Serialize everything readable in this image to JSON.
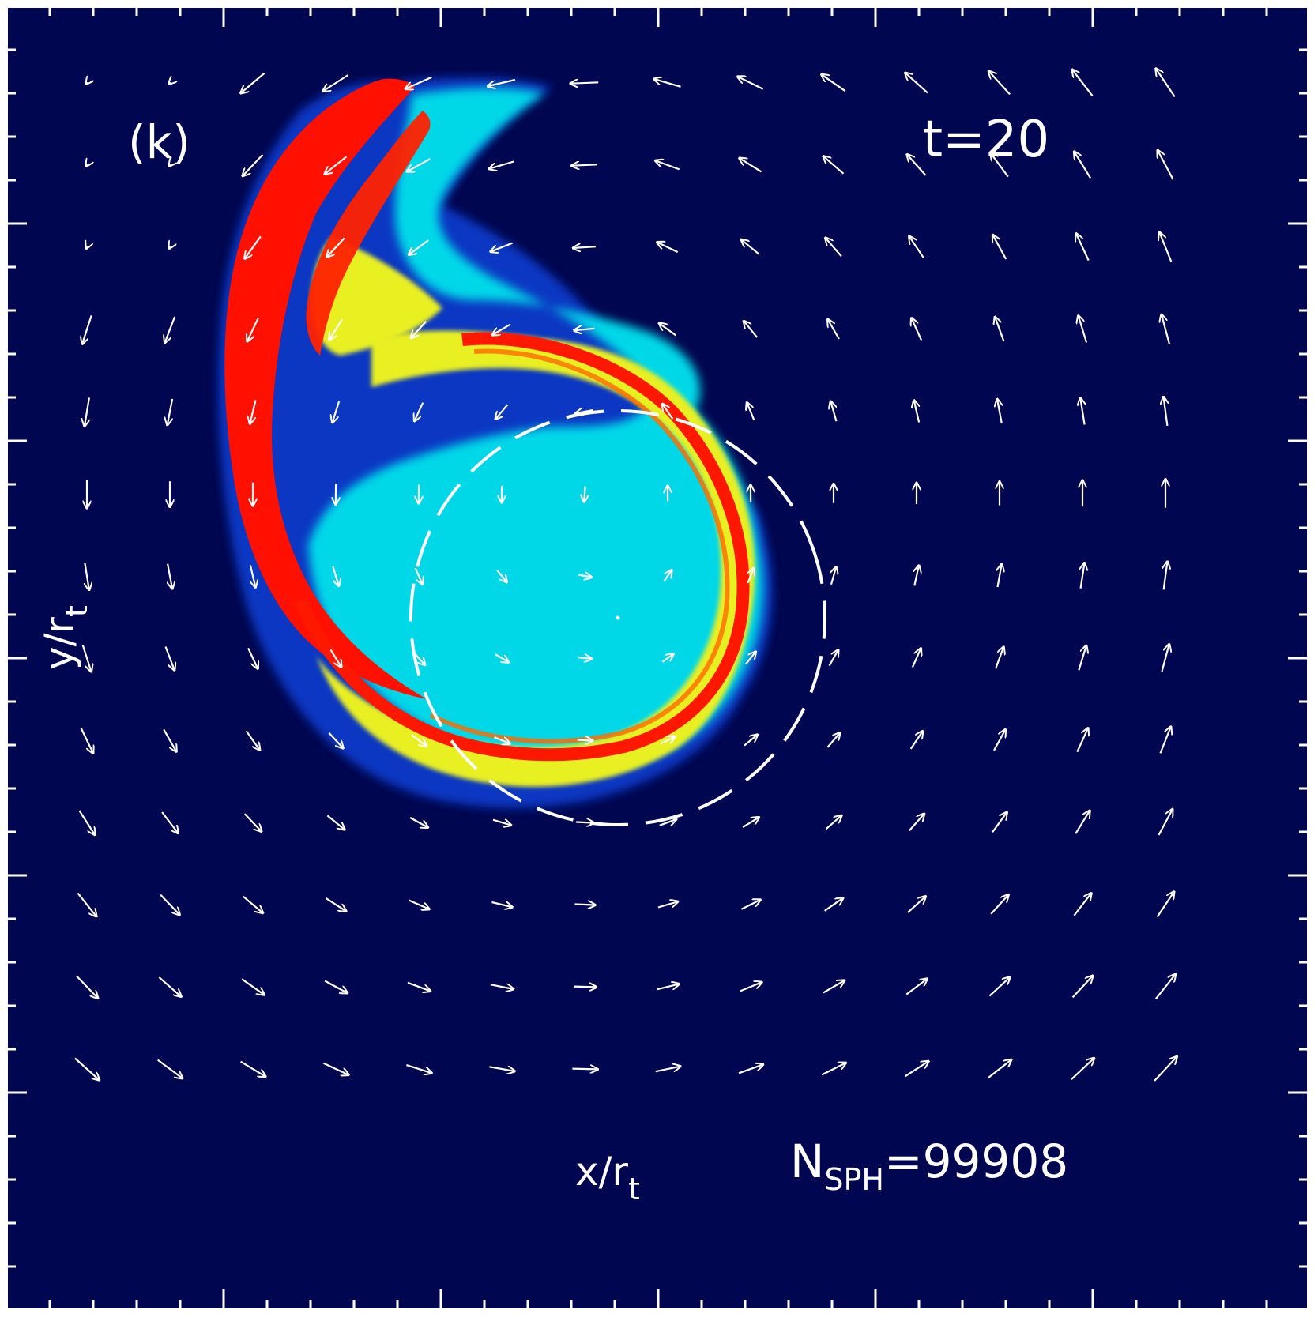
{
  "panel_label": "(k)",
  "time_label": "t=20",
  "particles": {
    "prefix": "N",
    "subscript": "SPH",
    "value": "=99908"
  },
  "x_axis": {
    "main": "x/r",
    "subscript": "t"
  },
  "y_axis": {
    "main": "y/r",
    "subscript": "t"
  },
  "colors": {
    "background": "#00004a",
    "plot_bg": "#00064f",
    "frame": "#ffffff",
    "arrow": "#ffffff",
    "density_low": "#0a3cd0",
    "density_mid": "#00e0e0",
    "density_high": "#ffff00",
    "density_peak": "#ff0000"
  },
  "icons": [
    "velocity-arrow-icon"
  ]
}
